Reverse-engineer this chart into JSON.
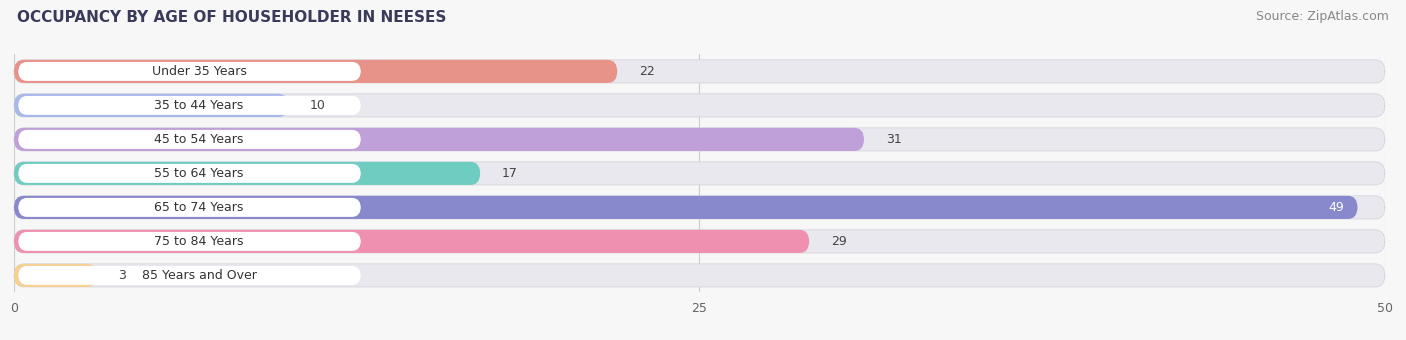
{
  "title": "OCCUPANCY BY AGE OF HOUSEHOLDER IN NEESES",
  "source": "Source: ZipAtlas.com",
  "categories": [
    "Under 35 Years",
    "35 to 44 Years",
    "45 to 54 Years",
    "55 to 64 Years",
    "65 to 74 Years",
    "75 to 84 Years",
    "85 Years and Over"
  ],
  "values": [
    22,
    10,
    31,
    17,
    49,
    29,
    3
  ],
  "bar_colors": [
    "#e8938a",
    "#a8b8e8",
    "#c0a0d8",
    "#6eccc0",
    "#8888cc",
    "#f090b0",
    "#f5d090"
  ],
  "xlim": [
    0,
    50
  ],
  "xticks": [
    0,
    25,
    50
  ],
  "inside_label_threshold": 35,
  "background_color": "#f7f7f7",
  "bar_background_color": "#e8e8ee",
  "title_fontsize": 11,
  "source_fontsize": 9,
  "label_fontsize": 9,
  "tick_fontsize": 9,
  "category_fontsize": 9
}
